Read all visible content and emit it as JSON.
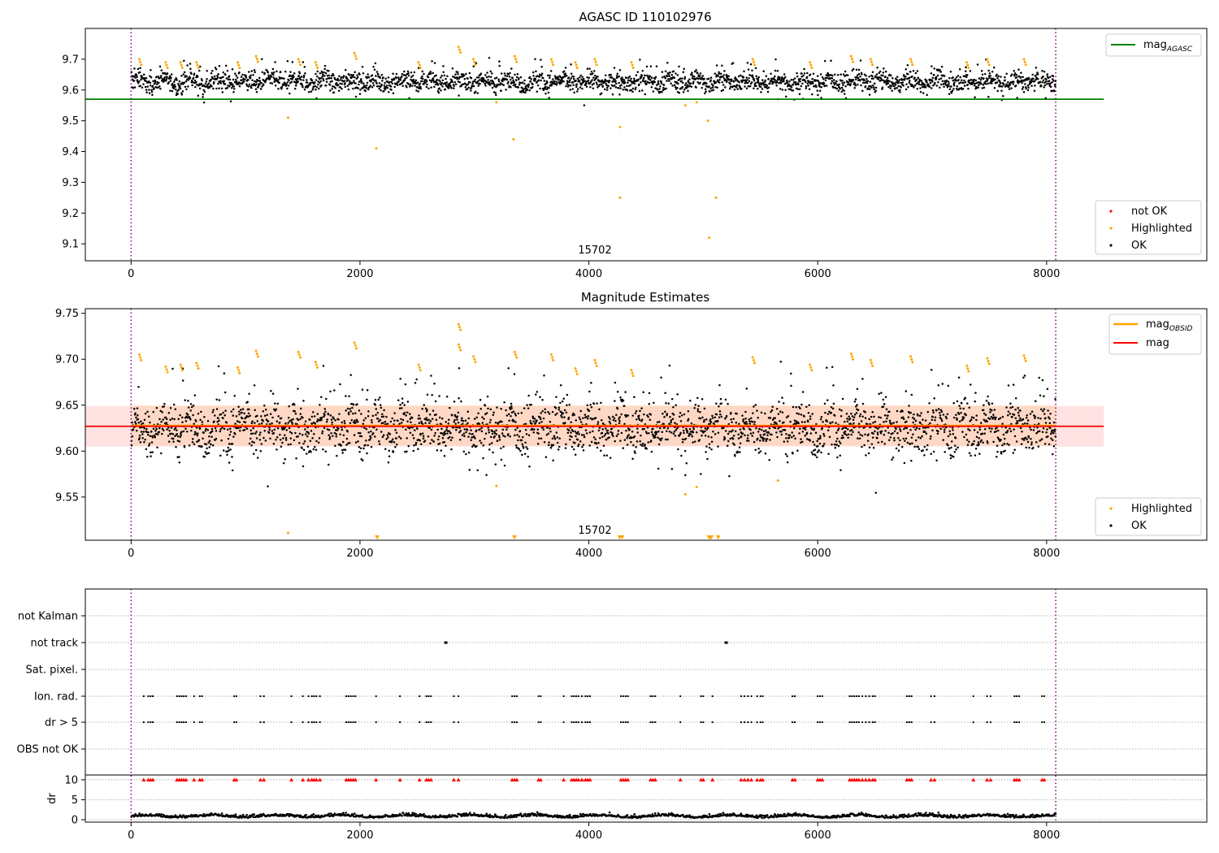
{
  "chart_data": [
    {
      "id": "agasc",
      "type": "scatter",
      "title": "AGASC ID 110102976",
      "xlim": [
        -400,
        9400
      ],
      "ylim": [
        9.045,
        9.8
      ],
      "xticks": [
        0,
        2000,
        4000,
        6000,
        8000
      ],
      "yticks": [
        9.1,
        9.2,
        9.3,
        9.4,
        9.5,
        9.6,
        9.7
      ],
      "ytick_labels": [
        "9.1",
        "9.2",
        "9.3",
        "9.4",
        "9.5",
        "9.6",
        "9.7"
      ],
      "obs_lines_x": [
        0,
        8080
      ],
      "obsid_label": {
        "text": "15702",
        "x": 4050,
        "y": 9.085
      },
      "hlines": [
        {
          "name": "mag_agasc",
          "y": 9.57,
          "x_range": [
            -400,
            8500
          ],
          "color": "#008000"
        }
      ],
      "legend_lines": [
        {
          "label": "mag",
          "sub": "AGASC",
          "color": "#008000"
        }
      ],
      "legend_markers": [
        {
          "label": "not OK",
          "color": "#ff0000"
        },
        {
          "label": "Highlighted",
          "color": "#ffa500"
        },
        {
          "label": "OK",
          "color": "#000000"
        }
      ],
      "ok_band": {
        "center": 9.627,
        "spread": 0.02,
        "x_range": [
          0,
          8080
        ]
      },
      "highlighted_points": [
        {
          "x": 1380,
          "y": 9.51
        },
        {
          "x": 2150,
          "y": 9.41
        },
        {
          "x": 3200,
          "y": 9.56
        },
        {
          "x": 3350,
          "y": 9.44
        },
        {
          "x": 4280,
          "y": 9.48
        },
        {
          "x": 4280,
          "y": 9.25
        },
        {
          "x": 4850,
          "y": 9.55
        },
        {
          "x": 4950,
          "y": 9.56
        },
        {
          "x": 5050,
          "y": 9.5
        },
        {
          "x": 5060,
          "y": 9.12
        },
        {
          "x": 5120,
          "y": 9.25
        },
        {
          "x": 5660,
          "y": 9.57
        },
        {
          "x": 80,
          "y": 9.7
        },
        {
          "x": 310,
          "y": 9.69
        },
        {
          "x": 440,
          "y": 9.69
        },
        {
          "x": 580,
          "y": 9.69
        },
        {
          "x": 940,
          "y": 9.69
        },
        {
          "x": 1100,
          "y": 9.71
        },
        {
          "x": 1470,
          "y": 9.7
        },
        {
          "x": 1620,
          "y": 9.69
        },
        {
          "x": 1960,
          "y": 9.72
        },
        {
          "x": 2520,
          "y": 9.69
        },
        {
          "x": 2870,
          "y": 9.74
        },
        {
          "x": 3000,
          "y": 9.7
        },
        {
          "x": 3360,
          "y": 9.71
        },
        {
          "x": 3680,
          "y": 9.7
        },
        {
          "x": 3890,
          "y": 9.69
        },
        {
          "x": 4060,
          "y": 9.7
        },
        {
          "x": 4380,
          "y": 9.69
        },
        {
          "x": 5440,
          "y": 9.7
        },
        {
          "x": 5940,
          "y": 9.69
        },
        {
          "x": 6300,
          "y": 9.71
        },
        {
          "x": 6470,
          "y": 9.7
        },
        {
          "x": 6820,
          "y": 9.7
        },
        {
          "x": 7310,
          "y": 9.69
        },
        {
          "x": 7490,
          "y": 9.7
        },
        {
          "x": 7810,
          "y": 9.7
        }
      ]
    },
    {
      "id": "estimates",
      "type": "scatter",
      "title": "Magnitude Estimates",
      "xlim": [
        -400,
        9400
      ],
      "ylim": [
        9.503,
        9.755
      ],
      "xticks": [
        0,
        2000,
        4000,
        6000,
        8000
      ],
      "yticks": [
        9.55,
        9.6,
        9.65,
        9.7,
        9.75
      ],
      "ytick_labels": [
        "9.55",
        "9.60",
        "9.65",
        "9.70",
        "9.75"
      ],
      "obs_lines_x": [
        0,
        8080
      ],
      "obsid_label": {
        "text": "15702",
        "x": 4050,
        "y": 9.506
      },
      "hlines": [
        {
          "name": "mag_obsid",
          "y": 9.628,
          "x_range": [
            0,
            8080
          ],
          "color": "#ffa500"
        },
        {
          "name": "mag",
          "y": 9.627,
          "x_range": [
            -400,
            8500
          ],
          "color": "#ff0000"
        }
      ],
      "bands": [
        {
          "name": "mag_band",
          "y_range": [
            9.605,
            9.649
          ],
          "x_range": [
            -400,
            8500
          ],
          "color": "#ff9999",
          "opacity": 0.28
        },
        {
          "name": "mag_obsid_band",
          "y_range": [
            9.606,
            9.65
          ],
          "x_range": [
            0,
            8080
          ],
          "color": "#ffc080",
          "opacity": 0.3
        }
      ],
      "legend_lines": [
        {
          "label": "mag",
          "sub": "OBSID",
          "color": "#ffa500"
        },
        {
          "label": "mag",
          "sub": "",
          "color": "#ff0000"
        }
      ],
      "legend_markers": [
        {
          "label": "Highlighted",
          "color": "#ffa500"
        },
        {
          "label": "OK",
          "color": "#000000"
        }
      ],
      "ok_band": {
        "center": 9.626,
        "spread": 0.018,
        "x_range": [
          0,
          8080
        ]
      },
      "highlighted_points": [
        {
          "x": 1380,
          "y": 9.511
        },
        {
          "x": 3200,
          "y": 9.562
        },
        {
          "x": 4850,
          "y": 9.553
        },
        {
          "x": 4950,
          "y": 9.561
        },
        {
          "x": 5660,
          "y": 9.568
        },
        {
          "x": 80,
          "y": 9.705
        },
        {
          "x": 310,
          "y": 9.692
        },
        {
          "x": 440,
          "y": 9.694
        },
        {
          "x": 580,
          "y": 9.696
        },
        {
          "x": 940,
          "y": 9.691
        },
        {
          "x": 1100,
          "y": 9.709
        },
        {
          "x": 1470,
          "y": 9.708
        },
        {
          "x": 1620,
          "y": 9.697
        },
        {
          "x": 1960,
          "y": 9.718
        },
        {
          "x": 2520,
          "y": 9.694
        },
        {
          "x": 2870,
          "y": 9.738
        },
        {
          "x": 2870,
          "y": 9.716
        },
        {
          "x": 3000,
          "y": 9.703
        },
        {
          "x": 3360,
          "y": 9.708
        },
        {
          "x": 3680,
          "y": 9.705
        },
        {
          "x": 3890,
          "y": 9.69
        },
        {
          "x": 4060,
          "y": 9.699
        },
        {
          "x": 4380,
          "y": 9.688
        },
        {
          "x": 5440,
          "y": 9.702
        },
        {
          "x": 5940,
          "y": 9.694
        },
        {
          "x": 6300,
          "y": 9.706
        },
        {
          "x": 6470,
          "y": 9.699
        },
        {
          "x": 6820,
          "y": 9.703
        },
        {
          "x": 7310,
          "y": 9.693
        },
        {
          "x": 7490,
          "y": 9.701
        },
        {
          "x": 7810,
          "y": 9.704
        }
      ],
      "clipped_markers_x": [
        2150,
        3350,
        4270,
        4290,
        5050,
        5060,
        5070,
        5130
      ]
    },
    {
      "id": "flags",
      "type": "scatter",
      "xlim": [
        -400,
        9400
      ],
      "xticks": [
        0,
        2000,
        4000,
        6000,
        8000
      ],
      "obs_lines_x": [
        0,
        8080
      ],
      "flag_rows": [
        "not Kalman",
        "not track",
        "Sat. pixel.",
        "Ion. rad.",
        "dr > 5",
        "OBS not OK"
      ],
      "flag_clusters_x": [
        110,
        150,
        170,
        190,
        400,
        420,
        440,
        460,
        480,
        550,
        600,
        620,
        900,
        920,
        1130,
        1160,
        1400,
        1500,
        1550,
        1580,
        1600,
        1620,
        1650,
        1880,
        1900,
        1920,
        1940,
        1960,
        2140,
        2350,
        2520,
        2580,
        2600,
        2620,
        2820,
        2860,
        3330,
        3350,
        3370,
        3560,
        3580,
        3780,
        3850,
        3870,
        3890,
        3910,
        3940,
        3970,
        3990,
        4010,
        4280,
        4300,
        4320,
        4340,
        4540,
        4560,
        4580,
        4800,
        4980,
        5000,
        5080,
        5330,
        5360,
        5390,
        5420,
        5470,
        5500,
        5520,
        5780,
        5800,
        6000,
        6020,
        6040,
        6280,
        6300,
        6320,
        6340,
        6360,
        6390,
        6420,
        6450,
        6480,
        6500,
        6780,
        6800,
        6820,
        6990,
        7020,
        7360,
        7480,
        7510,
        7720,
        7740,
        7760,
        7960,
        7980
      ],
      "not_track_x": [
        2750,
        5200
      ],
      "dr_ylim": [
        -0.6,
        11.2
      ],
      "dr_yticks": [
        0,
        5,
        10
      ],
      "dr_ytick_labels": [
        "0",
        "5",
        "10"
      ],
      "dr_ylabel": "dr",
      "dr_clip_value": 10
    }
  ]
}
